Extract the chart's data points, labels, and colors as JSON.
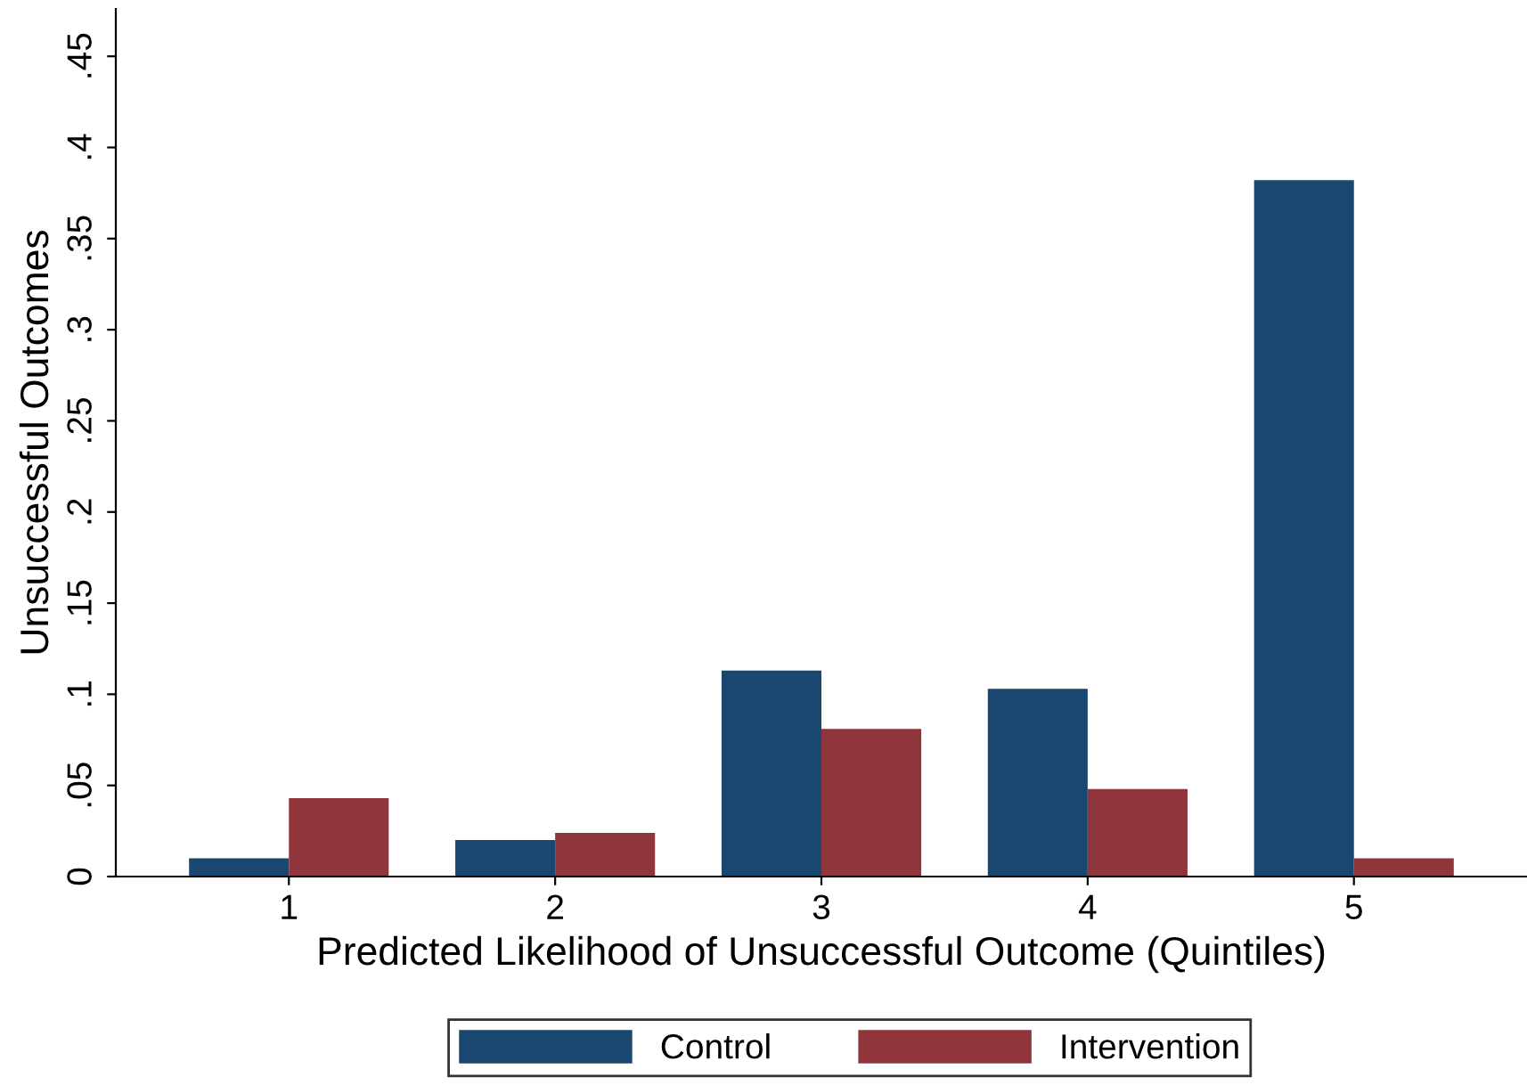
{
  "chart_data": {
    "type": "bar",
    "xlabel": "Predicted Likelihood of Unsuccessful Outcome (Quintiles)",
    "ylabel": "Unsuccessful Outcomes",
    "categories": [
      "1",
      "2",
      "3",
      "4",
      "5"
    ],
    "series": [
      {
        "name": "Control",
        "color": "#1a476f",
        "values": [
          0.01,
          0.02,
          0.113,
          0.103,
          0.382
        ]
      },
      {
        "name": "Intervention",
        "color": "#90353b",
        "values": [
          0.043,
          0.024,
          0.081,
          0.048,
          0.01
        ]
      }
    ],
    "ylim": [
      0,
      0.476
    ],
    "yticks": [
      0,
      {
        "value": 0.05,
        "label": ".05"
      },
      {
        "value": 0.1,
        "label": ".1"
      },
      {
        "value": 0.15,
        "label": ".15"
      },
      {
        "value": 0.2,
        "label": ".2"
      },
      {
        "value": 0.25,
        "label": ".25"
      },
      {
        "value": 0.3,
        "label": ".3"
      },
      {
        "value": 0.35,
        "label": ".35"
      },
      {
        "value": 0.4,
        "label": ".4"
      },
      {
        "value": 0.45,
        "label": ".45"
      }
    ],
    "grid": false,
    "legend": "bottom"
  }
}
